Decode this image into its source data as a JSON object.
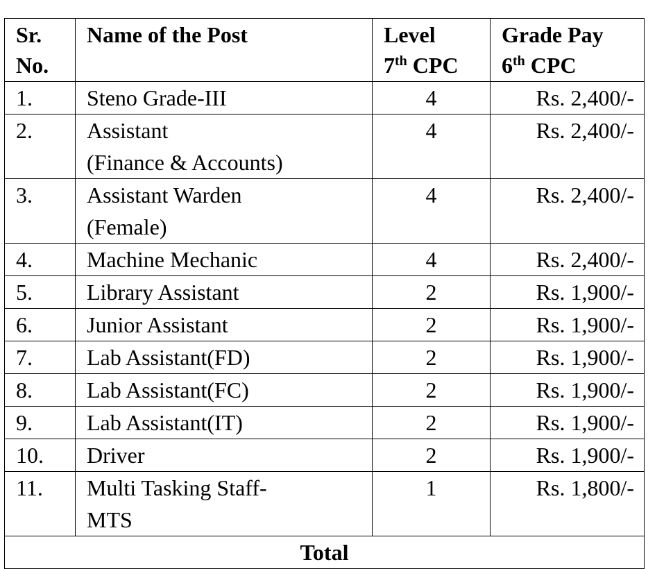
{
  "table": {
    "columns": [
      {
        "lines": [
          "Sr.",
          "No."
        ]
      },
      {
        "lines": [
          "Name of the Post"
        ]
      },
      {
        "lines": [
          "Level"
        ],
        "ordinal": "7",
        "suffix": "th",
        "rest": "CPC"
      },
      {
        "lines": [
          "Grade Pay"
        ],
        "ordinal": "6",
        "suffix": "th",
        "rest": "CPC"
      }
    ],
    "rows": [
      [
        "1.",
        [
          "Steno Grade-III"
        ],
        4,
        "Rs. 2,400/-"
      ],
      [
        "2.",
        [
          "Assistant",
          "(Finance & Accounts)"
        ],
        4,
        "Rs. 2,400/-"
      ],
      [
        "3.",
        [
          "Assistant Warden",
          "(Female)"
        ],
        4,
        "Rs. 2,400/-"
      ],
      [
        "4.",
        [
          "Machine Mechanic"
        ],
        4,
        "Rs. 2,400/-"
      ],
      [
        "5.",
        [
          "Library Assistant"
        ],
        2,
        "Rs. 1,900/-"
      ],
      [
        "6.",
        [
          "Junior Assistant"
        ],
        2,
        "Rs. 1,900/-"
      ],
      [
        "7.",
        [
          "Lab Assistant(FD)"
        ],
        2,
        "Rs. 1,900/-"
      ],
      [
        "8.",
        [
          "Lab Assistant(FC)"
        ],
        2,
        "Rs. 1,900/-"
      ],
      [
        "9.",
        [
          "Lab Assistant(IT)"
        ],
        2,
        "Rs. 1,900/-"
      ],
      [
        "10.",
        [
          "Driver"
        ],
        2,
        "Rs. 1,900/-"
      ],
      [
        "11.",
        [
          "Multi Tasking Staff-",
          "MTS"
        ],
        1,
        "Rs. 1,800/-"
      ]
    ],
    "total": "Total"
  }
}
